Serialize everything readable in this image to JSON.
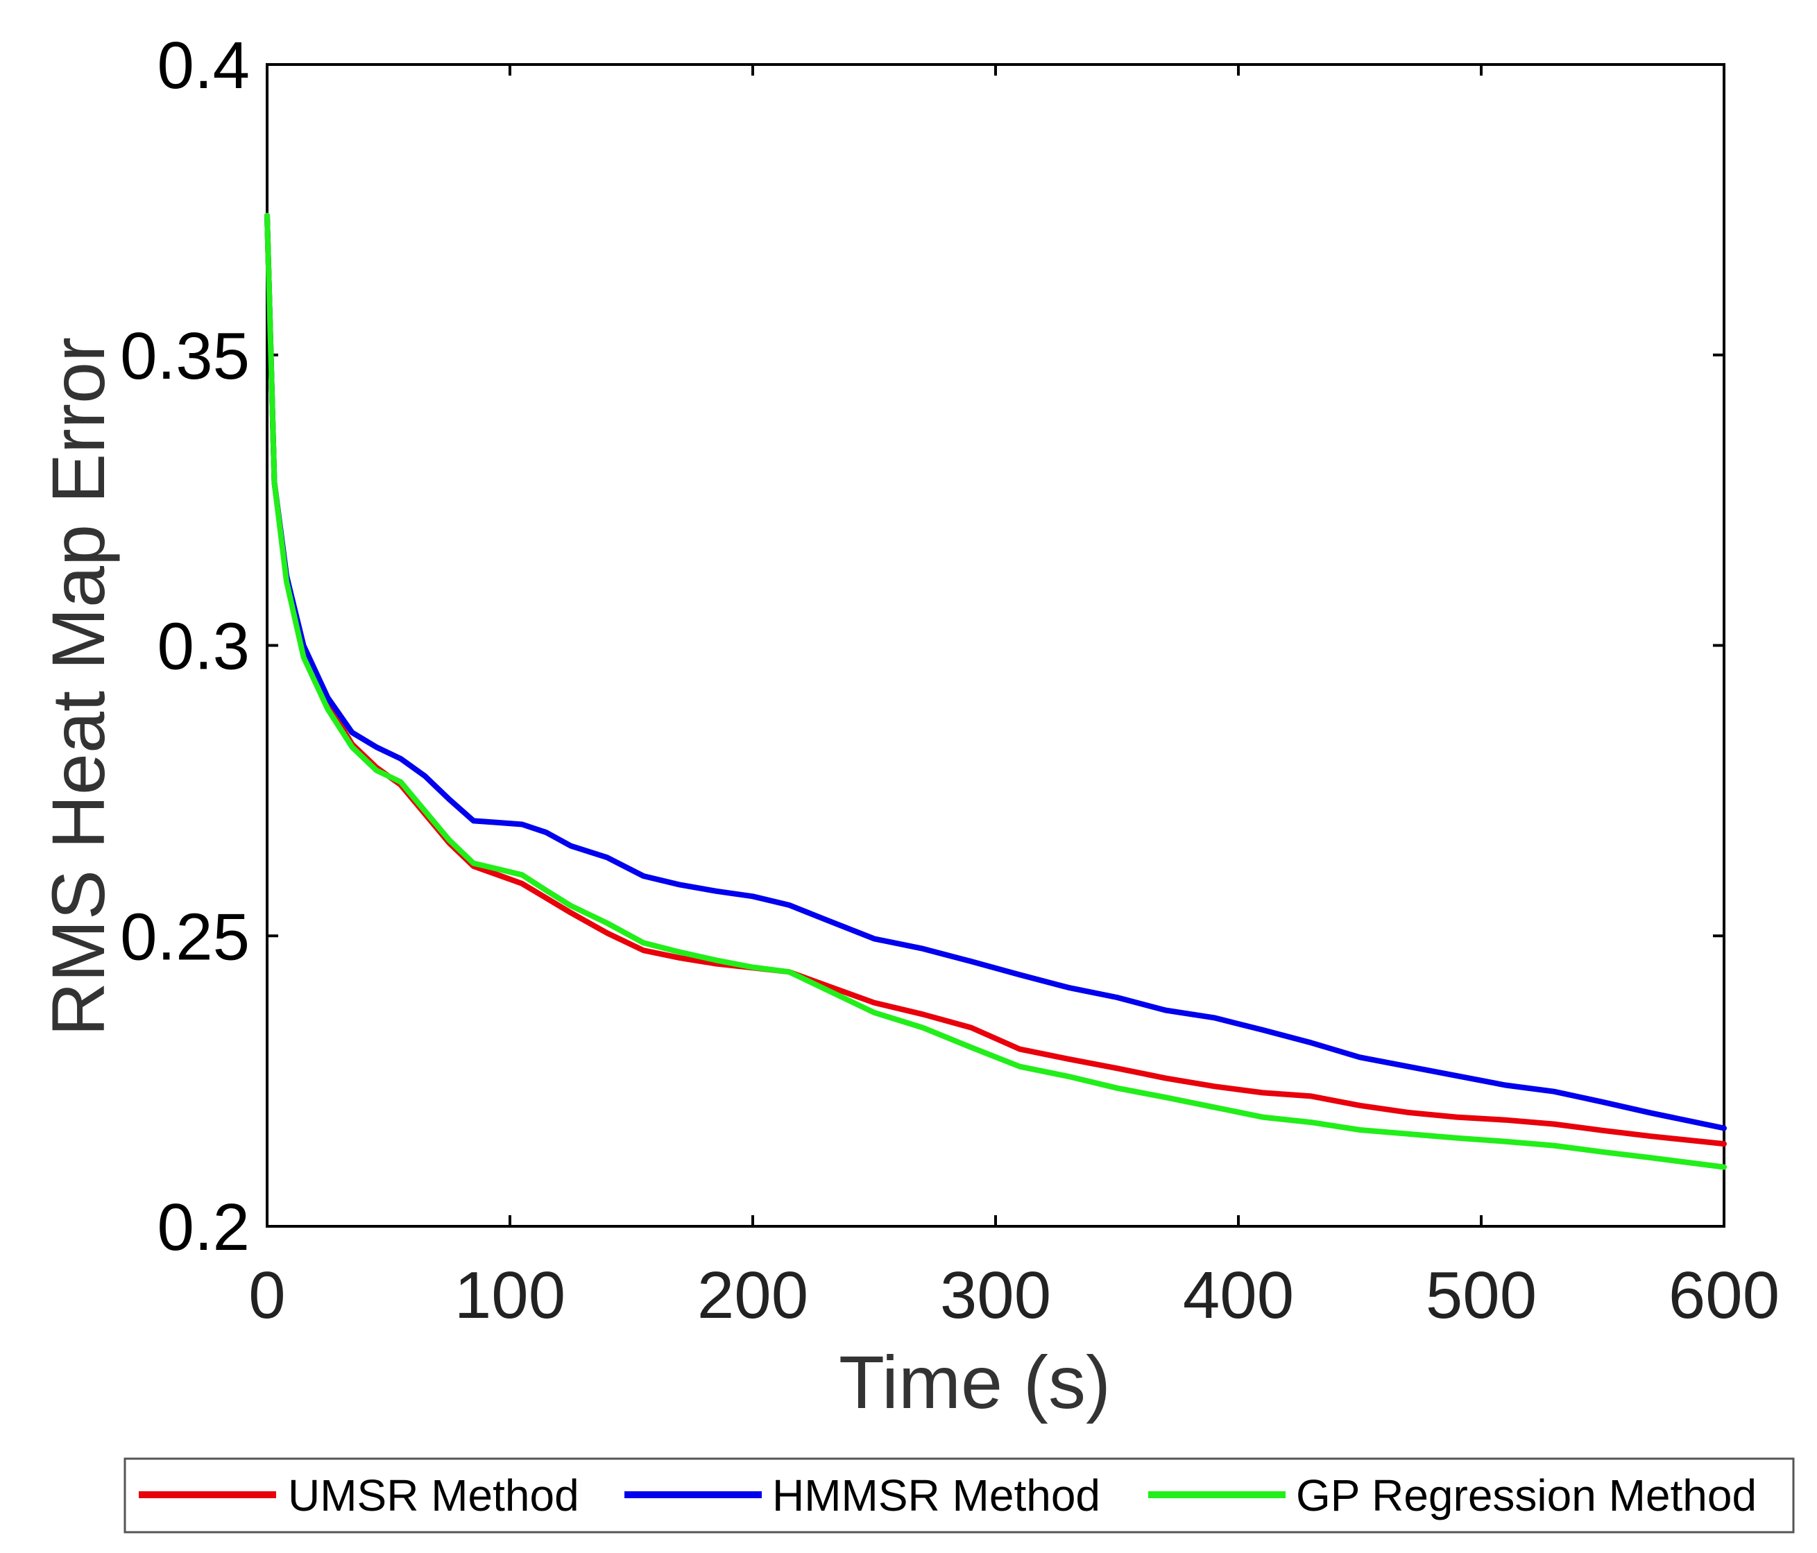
{
  "chart_data": {
    "type": "line",
    "title": "",
    "xlabel": "Time (s)",
    "ylabel": "RMS Heat Map Error",
    "xlim": [
      0,
      600
    ],
    "ylim": [
      0.2,
      0.4
    ],
    "x_ticks": [
      "0",
      "100",
      "200",
      "300",
      "400",
      "500",
      "600"
    ],
    "y_ticks": [
      "0.2",
      "0.25",
      "0.3",
      "0.35",
      "0.4"
    ],
    "grid": false,
    "legend_position": "bottom",
    "series": [
      {
        "name": "UMSR Method",
        "color": "#e8000b",
        "x": [
          0,
          3,
          8,
          15,
          25,
          35,
          45,
          55,
          65,
          75,
          85,
          95,
          105,
          115,
          125,
          140,
          155,
          170,
          185,
          200,
          215,
          230,
          250,
          270,
          290,
          310,
          330,
          350,
          370,
          390,
          410,
          430,
          450,
          470,
          490,
          510,
          530,
          550,
          570,
          600
        ],
        "y": [
          0.374,
          0.328,
          0.312,
          0.299,
          0.29,
          0.283,
          0.279,
          0.276,
          0.271,
          0.266,
          0.262,
          0.2605,
          0.259,
          0.2565,
          0.254,
          0.2505,
          0.2475,
          0.2462,
          0.2452,
          0.2445,
          0.2438,
          0.2415,
          0.2385,
          0.2365,
          0.2342,
          0.2305,
          0.2288,
          0.2272,
          0.2255,
          0.2241,
          0.223,
          0.2224,
          0.2208,
          0.2196,
          0.2188,
          0.2183,
          0.2176,
          0.2165,
          0.2155,
          0.2142
        ]
      },
      {
        "name": "HMMSR Method",
        "color": "#0000ee",
        "x": [
          0,
          3,
          8,
          15,
          25,
          35,
          45,
          55,
          65,
          75,
          85,
          95,
          105,
          115,
          125,
          140,
          155,
          170,
          185,
          200,
          215,
          230,
          250,
          270,
          290,
          310,
          330,
          350,
          370,
          390,
          410,
          430,
          450,
          470,
          490,
          510,
          530,
          550,
          570,
          600
        ],
        "y": [
          0.374,
          0.328,
          0.312,
          0.3,
          0.291,
          0.285,
          0.2825,
          0.2805,
          0.2775,
          0.2735,
          0.2698,
          0.2695,
          0.2692,
          0.2678,
          0.2655,
          0.2635,
          0.2603,
          0.2588,
          0.2577,
          0.2568,
          0.2553,
          0.2528,
          0.2495,
          0.2478,
          0.2456,
          0.2433,
          0.2411,
          0.2394,
          0.2372,
          0.2359,
          0.2338,
          0.2316,
          0.2291,
          0.2275,
          0.2259,
          0.2243,
          0.2232,
          0.2214,
          0.2195,
          0.2169
        ]
      },
      {
        "name": "GP Regression Method",
        "color": "#22ee1a",
        "x": [
          0,
          3,
          8,
          15,
          25,
          35,
          45,
          55,
          65,
          75,
          85,
          95,
          105,
          115,
          125,
          140,
          155,
          170,
          185,
          200,
          215,
          230,
          250,
          270,
          290,
          310,
          330,
          350,
          370,
          390,
          410,
          430,
          450,
          470,
          490,
          510,
          530,
          550,
          570,
          600
        ],
        "y": [
          0.374,
          0.328,
          0.311,
          0.298,
          0.289,
          0.2825,
          0.2785,
          0.2765,
          0.2715,
          0.2665,
          0.2625,
          0.2615,
          0.2605,
          0.2578,
          0.2552,
          0.2522,
          0.2488,
          0.2472,
          0.2458,
          0.2446,
          0.2438,
          0.2408,
          0.2368,
          0.2342,
          0.2308,
          0.2275,
          0.2258,
          0.2238,
          0.2222,
          0.2205,
          0.2188,
          0.2179,
          0.2166,
          0.2159,
          0.2152,
          0.2146,
          0.2139,
          0.2128,
          0.2118,
          0.2102
        ]
      }
    ]
  }
}
